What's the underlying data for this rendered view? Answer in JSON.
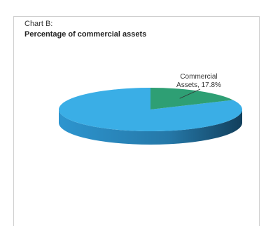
{
  "figure": {
    "label": "Chart B:",
    "title": "Percentage of commercial assets"
  },
  "chart_data": {
    "type": "pie",
    "label": "Chart B:",
    "title": "Percentage of commercial assets",
    "slices": [
      {
        "name": "Commercial Assets",
        "value": 17.8,
        "color": "#2e9f74",
        "data_label_line1": "Commercial",
        "data_label_line2": "Assets, 17.8%"
      },
      {
        "name": "",
        "value": 82.2,
        "color": "#3aaee6"
      }
    ],
    "style": "3d"
  }
}
